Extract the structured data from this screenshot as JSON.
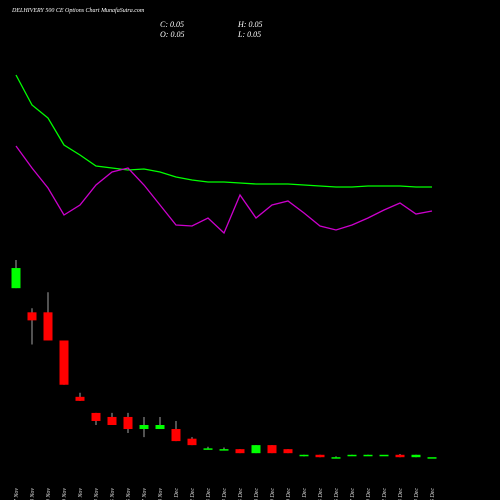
{
  "chart_data": {
    "type": "candlestick",
    "title": "DELHIVERY 500  CE Options  Chart MunafaSutra.com",
    "ohlc_labels": {
      "close": "C: 0.05",
      "high": "H: 0.05",
      "open": "O: 0.05",
      "low": "L: 0.05"
    },
    "categories": [
      "17 Nov",
      "18 Nov",
      "19 Nov",
      "20 Nov",
      "21 Nov",
      "24 Nov",
      "25 Nov",
      "26 Nov",
      "27 Nov",
      "28 Nov",
      "01 Dec",
      "02 Dec",
      "03 Dec",
      "04 Dec",
      "05 Dec",
      "08 Dec",
      "09 Dec",
      "10 Dec",
      "11 Dec",
      "15 Dec",
      "16 Dec",
      "17 Dec",
      "19 Dec",
      "22 Dec",
      "23 Dec",
      "24 Dec",
      "26 Dec"
    ],
    "open": [
      2.15,
      1.85,
      1.85,
      1.5,
      0.8,
      0.6,
      0.55,
      0.55,
      0.4,
      0.4,
      0.4,
      0.28,
      0.15,
      0.15,
      0.15,
      0.1,
      0.2,
      0.15,
      0.07,
      0.08,
      0.05,
      0.07,
      0.08,
      0.08,
      0.08,
      0.05,
      0.05
    ],
    "high": [
      2.5,
      1.9,
      2.1,
      1.5,
      0.85,
      0.6,
      0.6,
      0.6,
      0.55,
      0.55,
      0.5,
      0.3,
      0.18,
      0.17,
      0.15,
      0.2,
      0.2,
      0.15,
      0.08,
      0.08,
      0.06,
      0.08,
      0.08,
      0.08,
      0.09,
      0.08,
      0.05
    ],
    "low": [
      2.15,
      1.45,
      1.5,
      0.95,
      0.75,
      0.45,
      0.45,
      0.35,
      0.3,
      0.4,
      0.25,
      0.2,
      0.15,
      0.14,
      0.1,
      0.1,
      0.1,
      0.1,
      0.06,
      0.05,
      0.04,
      0.07,
      0.07,
      0.08,
      0.05,
      0.05,
      0.05
    ],
    "close": [
      2.4,
      1.75,
      1.5,
      0.95,
      0.75,
      0.5,
      0.45,
      0.4,
      0.45,
      0.45,
      0.25,
      0.2,
      0.16,
      0.15,
      0.1,
      0.2,
      0.1,
      0.1,
      0.08,
      0.05,
      0.05,
      0.08,
      0.08,
      0.08,
      0.05,
      0.08,
      0.05
    ],
    "up_color": "#00ff00",
    "down_color": "#ff0000",
    "lines": [
      {
        "color": "#00ff00",
        "values": [
          1.75,
          1.45,
          1.32,
          1.05,
          0.95,
          0.84,
          0.82,
          0.8,
          0.81,
          0.78,
          0.73,
          0.7,
          0.68,
          0.68,
          0.67,
          0.66,
          0.66,
          0.66,
          0.65,
          0.64,
          0.63,
          0.63,
          0.64,
          0.64,
          0.64,
          0.63,
          0.63
        ]
      },
      {
        "color": "#cc00cc",
        "values": [
          1.04,
          0.82,
          0.62,
          0.35,
          0.45,
          0.65,
          0.78,
          0.82,
          0.65,
          0.45,
          0.25,
          0.24,
          0.32,
          0.17,
          0.55,
          0.32,
          0.45,
          0.49,
          0.37,
          0.24,
          0.2,
          0.25,
          0.32,
          0.4,
          0.47,
          0.36,
          0.39
        ]
      }
    ]
  }
}
